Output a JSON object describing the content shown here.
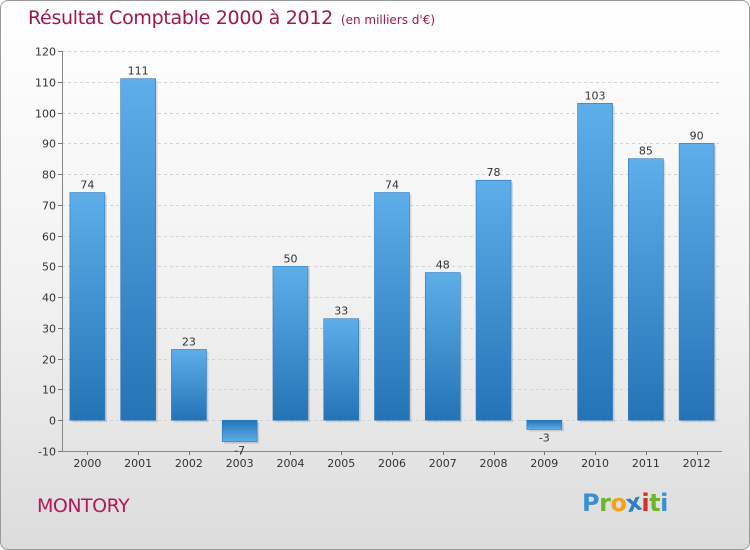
{
  "chart_data": {
    "type": "bar",
    "title": "Résultat Comptable 2000 à 2012",
    "subtitle": "(en milliers d'€)",
    "categories": [
      "2000",
      "2001",
      "2002",
      "2003",
      "2004",
      "2005",
      "2006",
      "2007",
      "2008",
      "2009",
      "2010",
      "2011",
      "2012"
    ],
    "values": [
      74,
      111,
      23,
      -7,
      50,
      33,
      74,
      48,
      78,
      -3,
      103,
      85,
      90
    ],
    "ylim": [
      -10,
      120
    ],
    "yticks": [
      -10,
      0,
      10,
      20,
      30,
      40,
      50,
      60,
      70,
      80,
      90,
      100,
      110,
      120
    ],
    "grid": true,
    "xlabel": "",
    "ylabel": "",
    "bar_color": "#3c92d6"
  },
  "footer": {
    "town": "MONTORY",
    "town_color": "#b3195a",
    "logo_letters": [
      {
        "ch": "P",
        "color": "#3a8fd0"
      },
      {
        "ch": "r",
        "color": "#6cb52d"
      },
      {
        "ch": "o",
        "color": "#f2a21a"
      },
      {
        "ch": "x",
        "color": "#2d7fc9"
      },
      {
        "ch": "i",
        "color": "#d62d28"
      },
      {
        "ch": "t",
        "color": "#6cb52d"
      },
      {
        "ch": "i",
        "color": "#3a8fd0"
      }
    ]
  }
}
